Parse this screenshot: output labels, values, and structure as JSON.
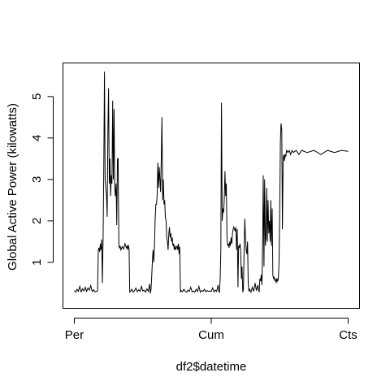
{
  "chart_data": {
    "type": "line",
    "xlabel": "df2$datetime",
    "ylabel": "Global Active Power (kilowatts)",
    "x_ticks": [
      "Per",
      "Cum",
      "Cts"
    ],
    "x_tick_positions": [
      0,
      1,
      2
    ],
    "y_ticks": [
      1,
      2,
      3,
      4,
      5
    ],
    "xlim": [
      -0.08,
      2.08
    ],
    "ylim": [
      -0.1,
      5.8
    ],
    "grid": false,
    "series": [
      {
        "values": [
          [
            0.0,
            0.32
          ],
          [
            0.01,
            0.28
          ],
          [
            0.02,
            0.35
          ],
          [
            0.03,
            0.3
          ],
          [
            0.04,
            0.42
          ],
          [
            0.05,
            0.29
          ],
          [
            0.06,
            0.36
          ],
          [
            0.07,
            0.31
          ],
          [
            0.08,
            0.4
          ],
          [
            0.09,
            0.3
          ],
          [
            0.1,
            0.38
          ],
          [
            0.11,
            0.33
          ],
          [
            0.12,
            0.44
          ],
          [
            0.13,
            0.3
          ],
          [
            0.14,
            0.34
          ],
          [
            0.15,
            0.29
          ],
          [
            0.16,
            0.3
          ],
          [
            0.17,
            0.31
          ],
          [
            0.175,
            1.3
          ],
          [
            0.18,
            1.35
          ],
          [
            0.185,
            1.25
          ],
          [
            0.19,
            1.45
          ],
          [
            0.195,
            1.3
          ],
          [
            0.2,
            1.55
          ],
          [
            0.205,
            0.5
          ],
          [
            0.21,
            1.6
          ],
          [
            0.215,
            3.2
          ],
          [
            0.22,
            5.6
          ],
          [
            0.225,
            3.0
          ],
          [
            0.23,
            2.8
          ],
          [
            0.235,
            2.6
          ],
          [
            0.24,
            2.1
          ],
          [
            0.245,
            4.2
          ],
          [
            0.25,
            5.2
          ],
          [
            0.255,
            2.9
          ],
          [
            0.26,
            3.5
          ],
          [
            0.265,
            2.6
          ],
          [
            0.27,
            3.1
          ],
          [
            0.275,
            2.9
          ],
          [
            0.28,
            4.9
          ],
          [
            0.285,
            3.0
          ],
          [
            0.29,
            4.7
          ],
          [
            0.295,
            2.8
          ],
          [
            0.3,
            2.6
          ],
          [
            0.305,
            2.9
          ],
          [
            0.31,
            1.9
          ],
          [
            0.315,
            3.5
          ],
          [
            0.32,
            3.5
          ],
          [
            0.325,
            1.4
          ],
          [
            0.33,
            1.35
          ],
          [
            0.335,
            1.4
          ],
          [
            0.34,
            1.3
          ],
          [
            0.35,
            1.38
          ],
          [
            0.36,
            1.32
          ],
          [
            0.37,
            1.45
          ],
          [
            0.38,
            1.35
          ],
          [
            0.385,
            1.4
          ],
          [
            0.39,
            1.3
          ],
          [
            0.395,
            1.42
          ],
          [
            0.4,
            1.3
          ],
          [
            0.405,
            0.28
          ],
          [
            0.41,
            0.3
          ],
          [
            0.42,
            0.35
          ],
          [
            0.43,
            0.28
          ],
          [
            0.44,
            0.32
          ],
          [
            0.45,
            0.38
          ],
          [
            0.46,
            0.29
          ],
          [
            0.47,
            0.34
          ],
          [
            0.48,
            0.3
          ],
          [
            0.49,
            0.42
          ],
          [
            0.5,
            0.31
          ],
          [
            0.51,
            0.33
          ],
          [
            0.52,
            0.28
          ],
          [
            0.53,
            0.36
          ],
          [
            0.54,
            0.3
          ],
          [
            0.55,
            0.48
          ],
          [
            0.555,
            0.25
          ],
          [
            0.56,
            0.35
          ],
          [
            0.565,
            0.65
          ],
          [
            0.57,
            1.0
          ],
          [
            0.575,
            1.3
          ],
          [
            0.58,
            1.0
          ],
          [
            0.585,
            1.4
          ],
          [
            0.59,
            2.0
          ],
          [
            0.595,
            2.4
          ],
          [
            0.6,
            2.4
          ],
          [
            0.605,
            2.6
          ],
          [
            0.61,
            3.4
          ],
          [
            0.615,
            2.8
          ],
          [
            0.62,
            3.3
          ],
          [
            0.625,
            3.0
          ],
          [
            0.63,
            2.7
          ],
          [
            0.635,
            3.5
          ],
          [
            0.64,
            4.5
          ],
          [
            0.645,
            2.5
          ],
          [
            0.65,
            3.0
          ],
          [
            0.655,
            2.4
          ],
          [
            0.66,
            2.5
          ],
          [
            0.665,
            2.1
          ],
          [
            0.67,
            2.0
          ],
          [
            0.675,
            1.6
          ],
          [
            0.68,
            1.5
          ],
          [
            0.685,
            1.3
          ],
          [
            0.69,
            1.7
          ],
          [
            0.695,
            1.85
          ],
          [
            0.7,
            1.6
          ],
          [
            0.705,
            1.7
          ],
          [
            0.71,
            1.5
          ],
          [
            0.715,
            1.6
          ],
          [
            0.72,
            1.4
          ],
          [
            0.725,
            1.45
          ],
          [
            0.73,
            1.3
          ],
          [
            0.735,
            1.4
          ],
          [
            0.74,
            1.3
          ],
          [
            0.745,
            1.35
          ],
          [
            0.75,
            1.4
          ],
          [
            0.755,
            1.3
          ],
          [
            0.76,
            1.45
          ],
          [
            0.765,
            1.2
          ],
          [
            0.77,
            1.38
          ],
          [
            0.775,
            0.28
          ],
          [
            0.78,
            0.32
          ],
          [
            0.79,
            0.29
          ],
          [
            0.8,
            0.35
          ],
          [
            0.81,
            0.3
          ],
          [
            0.82,
            0.28
          ],
          [
            0.83,
            0.33
          ],
          [
            0.84,
            0.3
          ],
          [
            0.85,
            0.4
          ],
          [
            0.86,
            0.29
          ],
          [
            0.87,
            0.31
          ],
          [
            0.88,
            0.28
          ],
          [
            0.89,
            0.35
          ],
          [
            0.9,
            0.3
          ],
          [
            0.91,
            0.42
          ],
          [
            0.92,
            0.28
          ],
          [
            0.93,
            0.32
          ],
          [
            0.94,
            0.3
          ],
          [
            0.95,
            0.35
          ],
          [
            0.96,
            0.29
          ],
          [
            0.97,
            0.32
          ],
          [
            0.98,
            0.3
          ],
          [
            0.99,
            0.31
          ],
          [
            1.0,
            0.3
          ],
          [
            1.01,
            0.38
          ],
          [
            1.02,
            0.29
          ],
          [
            1.03,
            0.33
          ],
          [
            1.04,
            0.3
          ],
          [
            1.05,
            0.45
          ],
          [
            1.055,
            0.3
          ],
          [
            1.06,
            0.28
          ],
          [
            1.065,
            0.6
          ],
          [
            1.07,
            1.3
          ],
          [
            1.075,
            4.85
          ],
          [
            1.08,
            2.0
          ],
          [
            1.085,
            2.3
          ],
          [
            1.09,
            2.2
          ],
          [
            1.095,
            2.5
          ],
          [
            1.1,
            3.2
          ],
          [
            1.105,
            2.6
          ],
          [
            1.11,
            2.9
          ],
          [
            1.115,
            1.6
          ],
          [
            1.12,
            1.4
          ],
          [
            1.125,
            1.45
          ],
          [
            1.13,
            1.35
          ],
          [
            1.135,
            1.5
          ],
          [
            1.14,
            1.4
          ],
          [
            1.145,
            1.6
          ],
          [
            1.15,
            1.45
          ],
          [
            1.155,
            1.7
          ],
          [
            1.16,
            1.8
          ],
          [
            1.165,
            1.85
          ],
          [
            1.17,
            1.8
          ],
          [
            1.175,
            1.75
          ],
          [
            1.18,
            1.85
          ],
          [
            1.185,
            1.3
          ],
          [
            1.19,
            1.8
          ],
          [
            1.195,
            0.4
          ],
          [
            1.2,
            1.4
          ],
          [
            1.205,
            1.35
          ],
          [
            1.21,
            1.45
          ],
          [
            1.215,
            1.3
          ],
          [
            1.22,
            0.6
          ],
          [
            1.225,
            0.9
          ],
          [
            1.23,
            0.28
          ],
          [
            1.235,
            0.35
          ],
          [
            1.24,
            1.25
          ],
          [
            1.245,
            2.05
          ],
          [
            1.25,
            1.6
          ],
          [
            1.255,
            1.3
          ],
          [
            1.26,
            1.2
          ],
          [
            1.265,
            1.5
          ],
          [
            1.27,
            0.5
          ],
          [
            1.275,
            0.3
          ],
          [
            1.28,
            0.35
          ],
          [
            1.29,
            0.28
          ],
          [
            1.3,
            0.4
          ],
          [
            1.31,
            0.3
          ],
          [
            1.32,
            0.5
          ],
          [
            1.33,
            0.32
          ],
          [
            1.34,
            0.45
          ],
          [
            1.345,
            0.35
          ],
          [
            1.35,
            0.28
          ],
          [
            1.355,
            0.6
          ],
          [
            1.36,
            0.55
          ],
          [
            1.365,
            0.7
          ],
          [
            1.37,
            0.45
          ],
          [
            1.375,
            1.4
          ],
          [
            1.38,
            3.1
          ],
          [
            1.385,
            0.9
          ],
          [
            1.39,
            3.0
          ],
          [
            1.395,
            1.4
          ],
          [
            1.4,
            1.6
          ],
          [
            1.405,
            2.8
          ],
          [
            1.41,
            1.5
          ],
          [
            1.415,
            2.5
          ],
          [
            1.42,
            1.7
          ],
          [
            1.425,
            2.0
          ],
          [
            1.43,
            1.5
          ],
          [
            1.435,
            2.5
          ],
          [
            1.44,
            1.4
          ],
          [
            1.445,
            2.3
          ],
          [
            1.45,
            0.7
          ],
          [
            1.455,
            0.6
          ],
          [
            1.46,
            0.65
          ],
          [
            1.465,
            0.55
          ],
          [
            1.47,
            0.6
          ],
          [
            1.475,
            0.5
          ],
          [
            1.48,
            0.62
          ],
          [
            1.485,
            0.55
          ],
          [
            1.49,
            0.6
          ],
          [
            1.495,
            1.0
          ],
          [
            1.5,
            2.3
          ],
          [
            1.505,
            3.9
          ],
          [
            1.51,
            4.35
          ],
          [
            1.515,
            4.2
          ],
          [
            1.52,
            1.8
          ],
          [
            1.525,
            3.5
          ],
          [
            1.53,
            3.6
          ],
          [
            1.535,
            3.45
          ],
          [
            1.54,
            3.6
          ],
          [
            1.545,
            3.55
          ],
          [
            1.55,
            3.7
          ],
          [
            1.56,
            3.65
          ],
          [
            1.57,
            3.7
          ],
          [
            1.58,
            3.6
          ],
          [
            1.59,
            3.7
          ],
          [
            1.6,
            3.65
          ],
          [
            1.62,
            3.7
          ],
          [
            1.64,
            3.6
          ],
          [
            1.66,
            3.7
          ],
          [
            1.7,
            3.65
          ],
          [
            1.75,
            3.7
          ],
          [
            1.8,
            3.6
          ],
          [
            1.85,
            3.7
          ],
          [
            1.9,
            3.65
          ],
          [
            1.95,
            3.7
          ],
          [
            2.0,
            3.68
          ]
        ]
      }
    ]
  }
}
